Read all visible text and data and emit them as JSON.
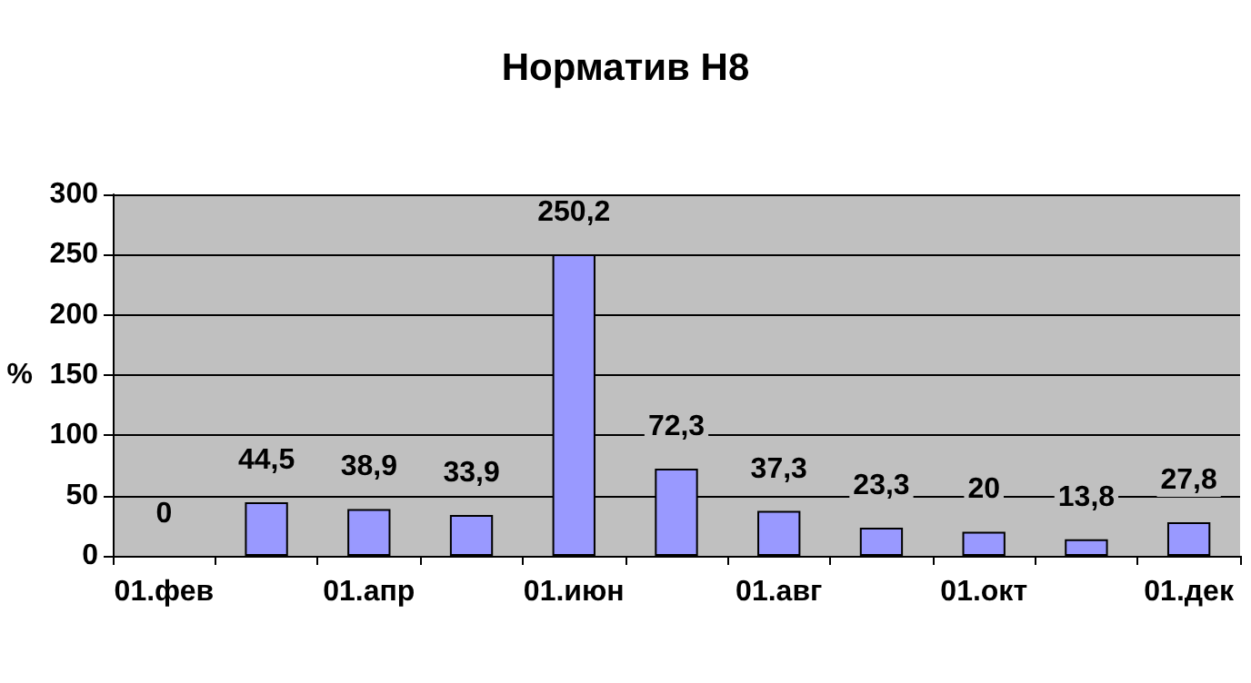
{
  "chart_data": {
    "type": "bar",
    "title": "Норматив Н8",
    "ylabel": "%",
    "categories": [
      "01.фев",
      null,
      "01.апр",
      null,
      "01.июн",
      null,
      "01.авг",
      null,
      "01.окт",
      null,
      "01.дек"
    ],
    "values": [
      0,
      44.5,
      38.9,
      33.9,
      250.2,
      72.3,
      37.3,
      23.3,
      20,
      13.8,
      27.8
    ],
    "value_labels": [
      "0",
      "44,5",
      "38,9",
      "33,9",
      "250,2",
      "72,3",
      "37,3",
      "23,3",
      "20",
      "13,8",
      "27,8"
    ],
    "color": "#9999ff",
    "ylim": [
      0,
      300
    ],
    "yticks": [
      0,
      50,
      100,
      150,
      200,
      250,
      300
    ],
    "grid": "y"
  }
}
